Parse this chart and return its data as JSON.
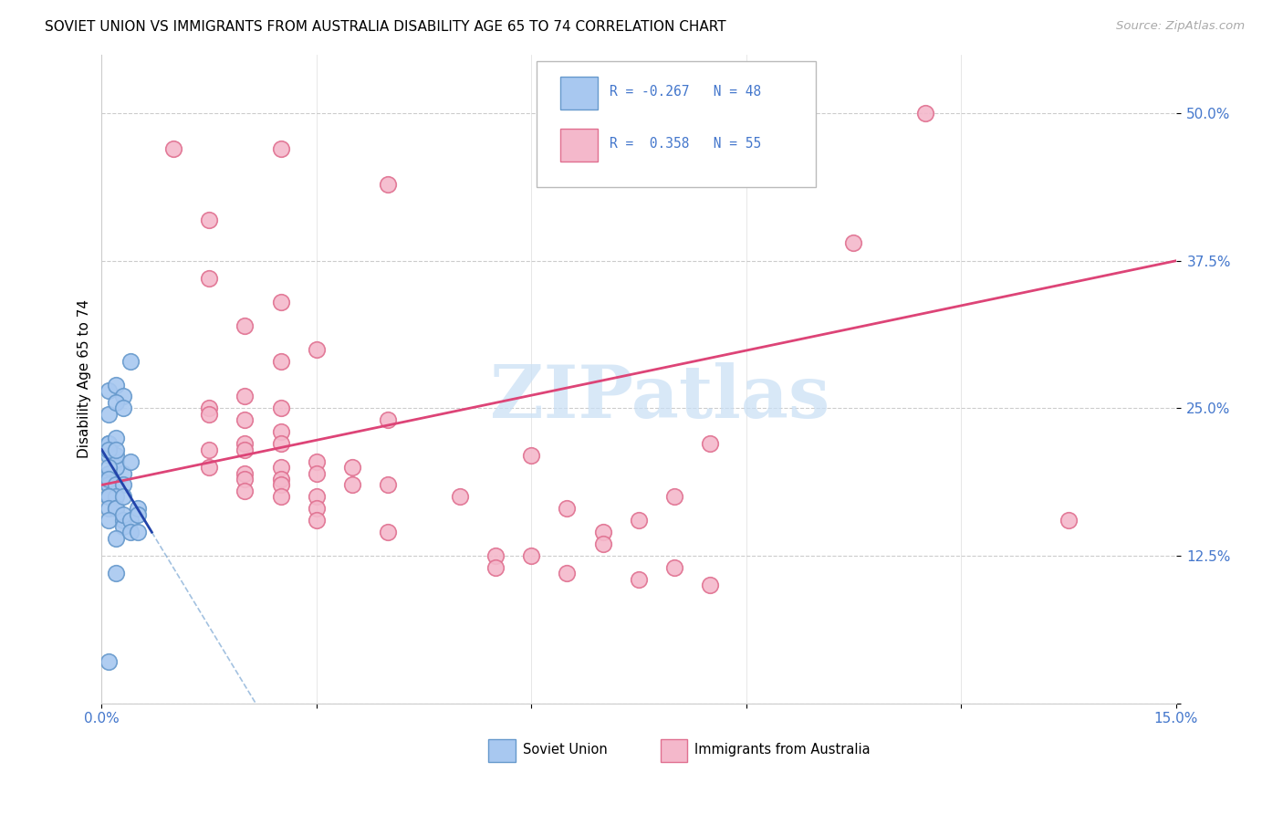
{
  "title": "SOVIET UNION VS IMMIGRANTS FROM AUSTRALIA DISABILITY AGE 65 TO 74 CORRELATION CHART",
  "source": "Source: ZipAtlas.com",
  "ylabel": "Disability Age 65 to 74",
  "xlim": [
    0.0,
    0.15
  ],
  "ylim": [
    0.0,
    0.55
  ],
  "xticks": [
    0.0,
    0.03,
    0.06,
    0.09,
    0.12,
    0.15
  ],
  "yticks": [
    0.0,
    0.125,
    0.25,
    0.375,
    0.5
  ],
  "ytick_labels": [
    "",
    "12.5%",
    "25.0%",
    "37.5%",
    "50.0%"
  ],
  "xtick_labels": [
    "0.0%",
    "",
    "",
    "",
    "",
    "15.0%"
  ],
  "legend_r_blue": "-0.267",
  "legend_n_blue": "48",
  "legend_r_pink": "0.358",
  "legend_n_pink": "55",
  "blue_scatter_color": "#a8c8f0",
  "pink_scatter_color": "#f4b8cb",
  "blue_edge_color": "#6699cc",
  "pink_edge_color": "#e07090",
  "blue_line_color": "#2244aa",
  "pink_line_color": "#dd4477",
  "watermark_color": "#c8dff5",
  "tick_color": "#4477cc",
  "soviet_x": [
    0.001,
    0.002,
    0.001,
    0.003,
    0.002,
    0.001,
    0.001,
    0.002,
    0.003,
    0.004,
    0.001,
    0.001,
    0.002,
    0.001,
    0.003,
    0.002,
    0.001,
    0.001,
    0.001,
    0.002,
    0.001,
    0.001,
    0.002,
    0.001,
    0.001,
    0.002,
    0.001,
    0.001,
    0.003,
    0.004,
    0.002,
    0.001,
    0.001,
    0.002,
    0.002,
    0.001,
    0.003,
    0.003,
    0.002,
    0.003,
    0.004,
    0.005,
    0.003,
    0.005,
    0.004,
    0.005,
    0.001,
    0.002
  ],
  "soviet_y": [
    0.265,
    0.27,
    0.245,
    0.26,
    0.255,
    0.22,
    0.21,
    0.205,
    0.25,
    0.29,
    0.215,
    0.22,
    0.225,
    0.195,
    0.195,
    0.2,
    0.19,
    0.195,
    0.185,
    0.21,
    0.215,
    0.2,
    0.215,
    0.185,
    0.19,
    0.185,
    0.175,
    0.175,
    0.185,
    0.205,
    0.175,
    0.175,
    0.165,
    0.165,
    0.165,
    0.155,
    0.155,
    0.15,
    0.14,
    0.16,
    0.155,
    0.165,
    0.175,
    0.16,
    0.145,
    0.145,
    0.035,
    0.11
  ],
  "australia_x": [
    0.01,
    0.025,
    0.015,
    0.04,
    0.015,
    0.025,
    0.02,
    0.025,
    0.03,
    0.02,
    0.015,
    0.025,
    0.025,
    0.015,
    0.02,
    0.02,
    0.025,
    0.02,
    0.025,
    0.02,
    0.015,
    0.02,
    0.03,
    0.015,
    0.025,
    0.03,
    0.04,
    0.025,
    0.02,
    0.035,
    0.03,
    0.025,
    0.035,
    0.03,
    0.03,
    0.04,
    0.05,
    0.055,
    0.055,
    0.06,
    0.065,
    0.075,
    0.08,
    0.085,
    0.085,
    0.105,
    0.115,
    0.135,
    0.04,
    0.06,
    0.065,
    0.07,
    0.07,
    0.075,
    0.08
  ],
  "australia_y": [
    0.47,
    0.47,
    0.41,
    0.44,
    0.36,
    0.34,
    0.32,
    0.29,
    0.3,
    0.26,
    0.25,
    0.23,
    0.25,
    0.245,
    0.22,
    0.24,
    0.22,
    0.195,
    0.2,
    0.215,
    0.215,
    0.19,
    0.205,
    0.2,
    0.19,
    0.195,
    0.24,
    0.185,
    0.18,
    0.2,
    0.175,
    0.175,
    0.185,
    0.165,
    0.155,
    0.145,
    0.175,
    0.125,
    0.115,
    0.125,
    0.11,
    0.105,
    0.115,
    0.1,
    0.22,
    0.39,
    0.5,
    0.155,
    0.185,
    0.21,
    0.165,
    0.145,
    0.135,
    0.155,
    0.175
  ],
  "pink_line_x0": 0.0,
  "pink_line_y0": 0.185,
  "pink_line_x1": 0.15,
  "pink_line_y1": 0.375,
  "blue_line_x0": 0.0,
  "blue_line_y0": 0.215,
  "blue_line_x1": 0.007,
  "blue_line_y1": 0.145
}
